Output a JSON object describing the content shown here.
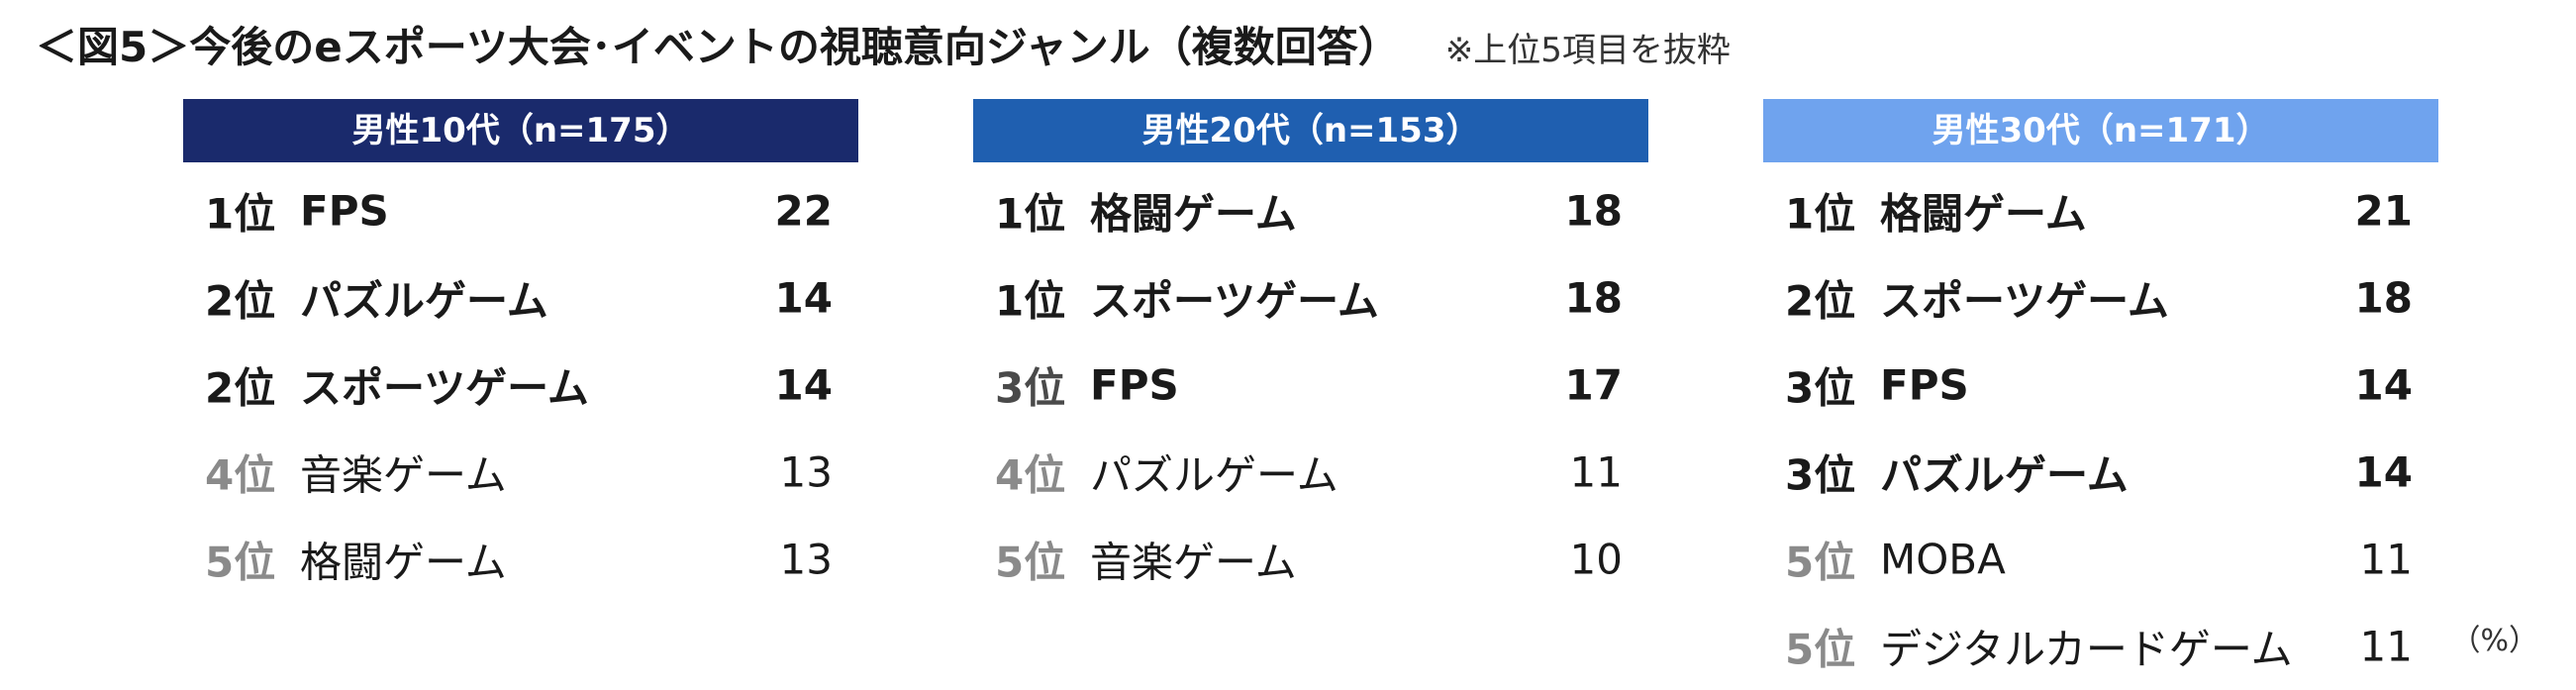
{
  "title": "＜図5＞今後のeスポーツ大会･イベントの視聴意向ジャンル（複数回答）",
  "note": "※上位5項目を抜粋",
  "unit": "（%）",
  "columns": [
    {
      "header": "男性10代（n=175）",
      "header_color": "#1a2a6c",
      "rows": [
        {
          "rank": "1位",
          "label": "FPS",
          "value": "22",
          "emphasis": true
        },
        {
          "rank": "2位",
          "label": "パズルゲーム",
          "value": "14",
          "emphasis": true
        },
        {
          "rank": "2位",
          "label": "スポーツゲーム",
          "value": "14",
          "emphasis": true
        },
        {
          "rank": "4位",
          "label": "音楽ゲーム",
          "value": "13",
          "emphasis": false
        },
        {
          "rank": "5位",
          "label": "格闘ゲーム",
          "value": "13",
          "emphasis": false
        }
      ]
    },
    {
      "header": "男性20代（n=153）",
      "header_color": "#1f5fb0",
      "rows": [
        {
          "rank": "1位",
          "label": "格闘ゲーム",
          "value": "18",
          "emphasis": true
        },
        {
          "rank": "1位",
          "label": "スポーツゲーム",
          "value": "18",
          "emphasis": true
        },
        {
          "rank": "3位",
          "label": "FPS",
          "value": "17",
          "emphasis": true
        },
        {
          "rank": "4位",
          "label": "パズルゲーム",
          "value": "11",
          "emphasis": false
        },
        {
          "rank": "5位",
          "label": "音楽ゲーム",
          "value": "10",
          "emphasis": false
        }
      ]
    },
    {
      "header": "男性30代（n=171）",
      "header_color": "#6fa3ee",
      "rows": [
        {
          "rank": "1位",
          "label": "格闘ゲーム",
          "value": "21",
          "emphasis": true
        },
        {
          "rank": "2位",
          "label": "スポーツゲーム",
          "value": "18",
          "emphasis": true
        },
        {
          "rank": "3位",
          "label": "FPS",
          "value": "14",
          "emphasis": true
        },
        {
          "rank": "3位",
          "label": "パズルゲーム",
          "value": "14",
          "emphasis": true
        },
        {
          "rank": "5位",
          "label": "MOBA",
          "value": "11",
          "emphasis": false
        },
        {
          "rank": "5位",
          "label": "デジタルカードゲーム",
          "value": "11",
          "emphasis": false
        }
      ]
    }
  ]
}
